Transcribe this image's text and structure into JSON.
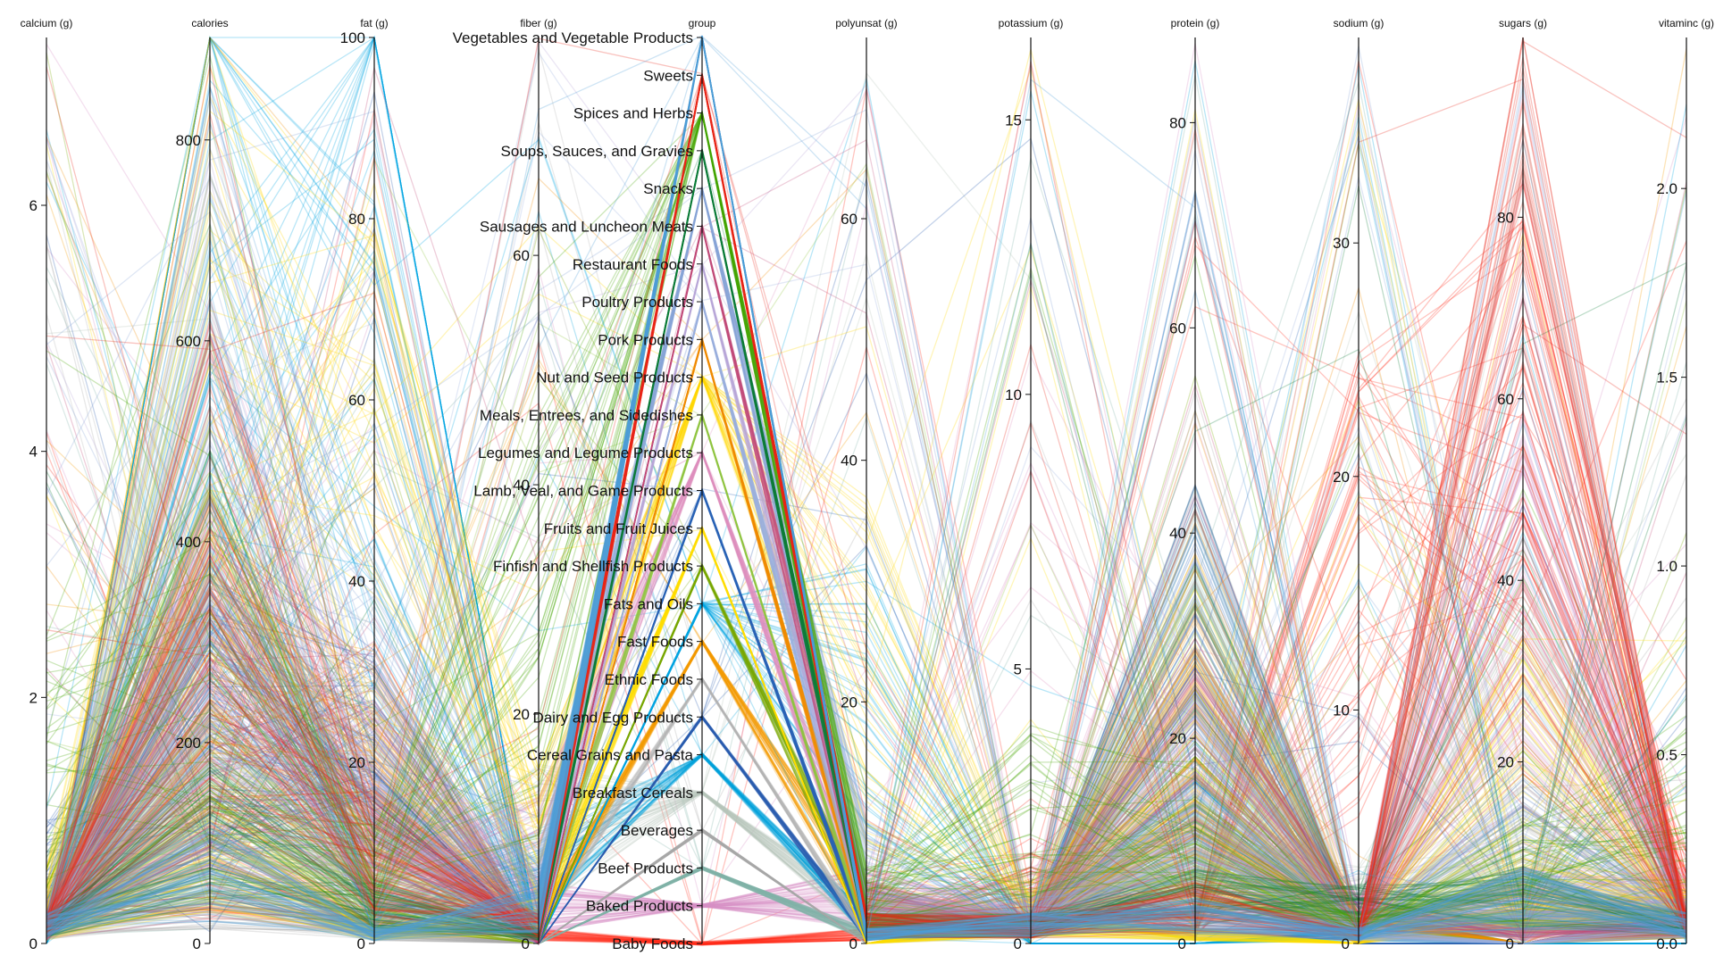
{
  "chart_data": {
    "type": "parallel-coordinates",
    "title": "",
    "axes": [
      {
        "key": "calcium",
        "label": "calcium (g)",
        "domain": [
          0,
          7.364
        ],
        "ticks": [
          0,
          2,
          4,
          6
        ]
      },
      {
        "key": "calories",
        "label": "calories",
        "domain": [
          0,
          902
        ],
        "ticks": [
          0,
          200,
          400,
          600,
          800
        ]
      },
      {
        "key": "fat",
        "label": "fat (g)",
        "domain": [
          0,
          100
        ],
        "ticks": [
          0,
          20,
          40,
          60,
          80,
          100
        ]
      },
      {
        "key": "fiber",
        "label": "fiber (g)",
        "domain": [
          0,
          79
        ],
        "ticks": [
          0,
          20,
          40,
          60
        ]
      },
      {
        "key": "group",
        "label": "group",
        "type": "categorical",
        "categories": [
          "Baby Foods",
          "Baked Products",
          "Beef Products",
          "Beverages",
          "Breakfast Cereals",
          "Cereal Grains and Pasta",
          "Dairy and Egg Products",
          "Ethnic Foods",
          "Fast Foods",
          "Fats and Oils",
          "Finfish and Shellfish Products",
          "Fruits and Fruit Juices",
          "Lamb, Veal, and Game Products",
          "Legumes and Legume Products",
          "Meals, Entrees, and Sidedishes",
          "Nut and Seed Products",
          "Pork Products",
          "Poultry Products",
          "Restaurant Foods",
          "Sausages and Luncheon Meats",
          "Snacks",
          "Soups, Sauces, and Gravies",
          "Spices and Herbs",
          "Sweets",
          "Vegetables and Vegetable Products"
        ]
      },
      {
        "key": "polyunsat",
        "label": "polyunsat (g)",
        "domain": [
          0,
          75
        ],
        "ticks": [
          0,
          20,
          40,
          60
        ]
      },
      {
        "key": "potassium",
        "label": "potassium (g)",
        "domain": [
          0,
          16.5
        ],
        "ticks": [
          0,
          5,
          10,
          15
        ]
      },
      {
        "key": "protein",
        "label": "protein (g)",
        "domain": [
          0,
          88.3
        ],
        "ticks": [
          0,
          20,
          40,
          60,
          80
        ]
      },
      {
        "key": "sodium",
        "label": "sodium (g)",
        "domain": [
          0,
          38.8
        ],
        "ticks": [
          0,
          10,
          20,
          30
        ]
      },
      {
        "key": "sugars",
        "label": "sugars (g)",
        "domain": [
          0,
          99.8
        ],
        "ticks": [
          0,
          20,
          40,
          60,
          80
        ]
      },
      {
        "key": "vitaminc",
        "label": "vitaminc (g)",
        "domain": [
          0,
          2.4
        ],
        "ticks": [
          "0.0",
          "0.5",
          "1.0",
          "1.5",
          "2.0"
        ]
      }
    ],
    "group_colors": {
      "Baby Foods": "#ff2a1a",
      "Baked Products": "#d98ec7",
      "Beef Products": "#83b5a8",
      "Beverages": "#a9a9a9",
      "Breakfast Cereals": "#b8c4bc",
      "Cereal Grains and Pasta": "#00a0dc",
      "Dairy and Egg Products": "#2b5fb0",
      "Ethnic Foods": "#b2b2b2",
      "Fast Foods": "#f49a00",
      "Fats and Oils": "#00a7e1",
      "Finfish and Shellfish Products": "#7aa800",
      "Fruits and Fruit Juices": "#ffe000",
      "Lamb, Veal, and Game Products": "#2c66b8",
      "Legumes and Legume Products": "#e08fbf",
      "Meals, Entrees, and Sidedishes": "#8ec63f",
      "Nut and Seed Products": "#ffd700",
      "Pork Products": "#f28c00",
      "Poultry Products": "#9ab0dd",
      "Restaurant Foods": "#b8a7d6",
      "Sausages and Luncheon Meats": "#c14b7a",
      "Snacks": "#8aa6d8",
      "Soups, Sauces, and Gravies": "#0f7c3a",
      "Spices and Herbs": "#44a500",
      "Sweets": "#e8261a",
      "Vegetables and Vegetable Products": "#4f9fd8"
    },
    "grid": false,
    "legend": "none"
  }
}
